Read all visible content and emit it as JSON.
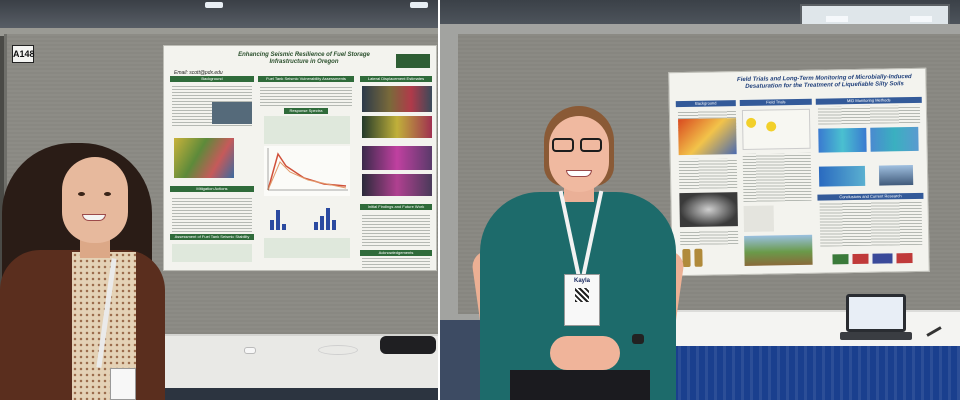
{
  "left_photo": {
    "booth_number": "A148",
    "poster": {
      "title": "Enhancing Seismic Resilience of Fuel Storage Infrastructure in Oregon",
      "email": "Email: scott@pdx.edu",
      "sections": [
        "Background",
        "Fuel Tank Seismic Vulnerability Assessments",
        "Lateral Displacement Estimates",
        "Response Spectra",
        "Mitigation Actions",
        "Initial Findings and Future Work",
        "Assessment of Fuel Tank Seismic Stability",
        "Acknowledgements"
      ]
    },
    "person": {
      "description_badge": ""
    }
  },
  "right_photo": {
    "poster": {
      "title": "Field Trials and Long-Term Monitoring of Microbially-Induced Desaturation for the Treatment of Liquefiable Silty Soils",
      "sections": [
        "Background",
        "Field Trials",
        "MID Monitoring Methods",
        "Conclusions and Current Research"
      ]
    },
    "badge": {
      "name": "Kayla"
    }
  },
  "colors": {
    "poster_green": "#2f6b3a",
    "right_shirt": "#1d6b6b",
    "left_jacket": "#5a2e1e",
    "table_skirt": "#1a3f8e"
  }
}
